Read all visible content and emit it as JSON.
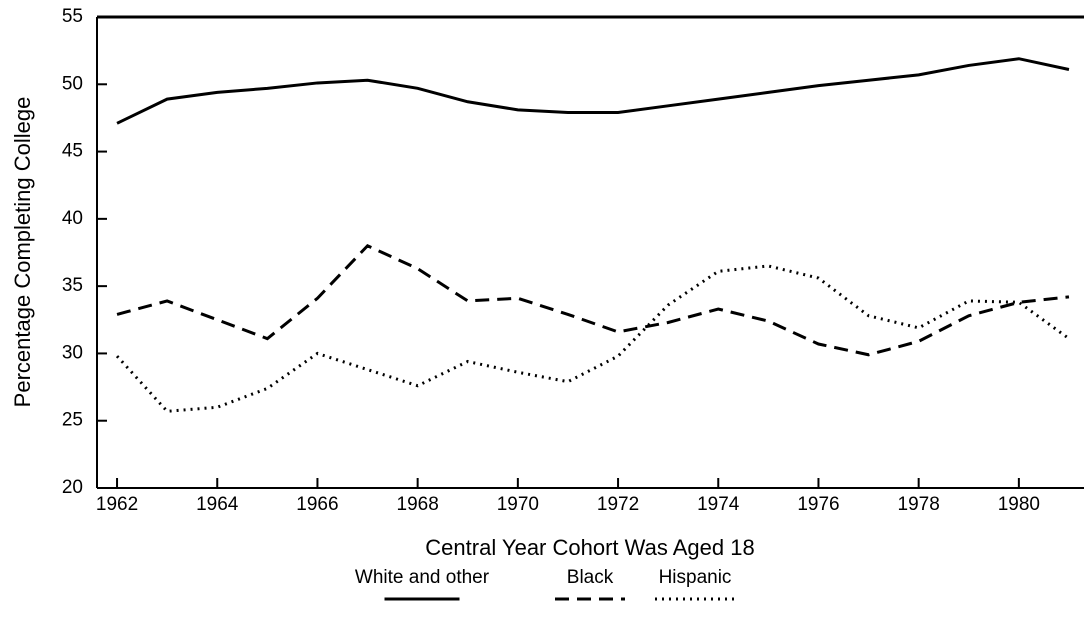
{
  "chart_data": {
    "type": "line",
    "x_label": "Central Year Cohort Was Aged 18",
    "y_label": "Percentage Completing College",
    "x": [
      1962,
      1963,
      1964,
      1965,
      1966,
      1967,
      1968,
      1969,
      1970,
      1971,
      1972,
      1973,
      1974,
      1975,
      1976,
      1977,
      1978,
      1979,
      1980,
      1981
    ],
    "series": [
      {
        "name": "White and other",
        "color": "#000000",
        "dash": "solid",
        "values": [
          47.1,
          48.9,
          49.4,
          49.7,
          50.1,
          50.3,
          49.7,
          48.7,
          48.1,
          47.9,
          47.9,
          48.4,
          48.9,
          49.4,
          49.9,
          50.3,
          50.7,
          51.4,
          51.9,
          51.1
        ]
      },
      {
        "name": "Black",
        "color": "#000000",
        "dash": "dashed",
        "values": [
          32.9,
          33.9,
          32.5,
          31.1,
          34.1,
          38.0,
          36.3,
          33.9,
          34.1,
          32.9,
          31.6,
          32.3,
          33.3,
          32.4,
          30.7,
          29.9,
          30.9,
          32.8,
          33.8,
          34.2
        ]
      },
      {
        "name": "Hispanic",
        "color": "#000000",
        "dash": "dotted",
        "values": [
          29.8,
          25.7,
          26.0,
          27.4,
          30.0,
          28.8,
          27.6,
          29.4,
          28.6,
          27.9,
          29.8,
          33.6,
          36.1,
          36.5,
          35.6,
          32.8,
          31.9,
          33.9,
          33.8,
          31.1
        ]
      }
    ],
    "xlim": [
      1961.6,
      1981.3
    ],
    "xticks": [
      1962,
      1964,
      1966,
      1968,
      1970,
      1972,
      1974,
      1976,
      1978,
      1980
    ],
    "ylim": [
      20,
      55
    ],
    "yticks": [
      20,
      25,
      30,
      35,
      40,
      45,
      50,
      55
    ],
    "legend": "bottom"
  }
}
